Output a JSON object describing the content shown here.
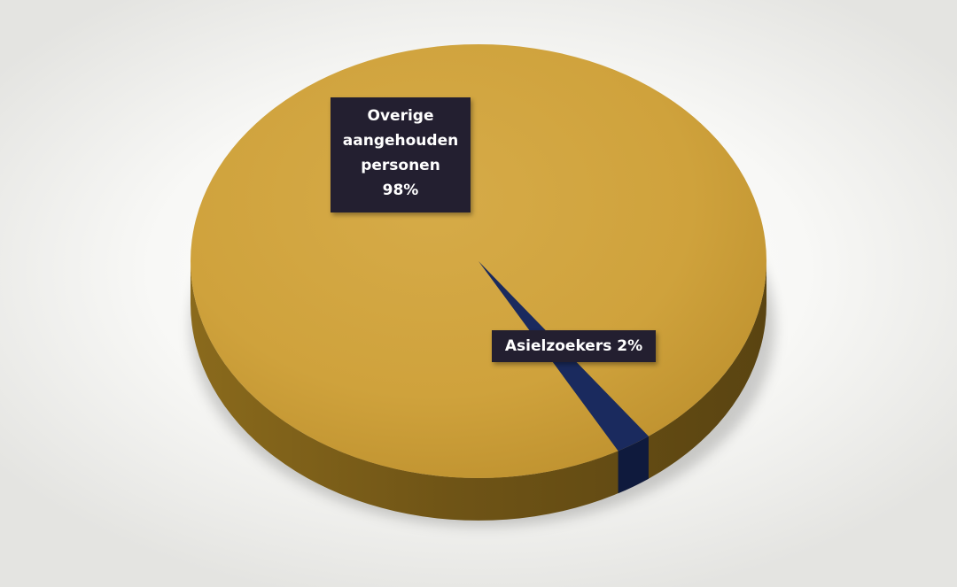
{
  "chart_data": {
    "type": "pie",
    "title": "",
    "slices": [
      {
        "label_lines": [
          "Overige",
          "aangehouden",
          "personen",
          "98%"
        ],
        "value": 98,
        "color": "#d1a43e"
      },
      {
        "label": "Asielzoekers 2%",
        "value": 2,
        "color": "#1a2a5e"
      }
    ],
    "style": "3d",
    "label_background": "#231f30"
  }
}
